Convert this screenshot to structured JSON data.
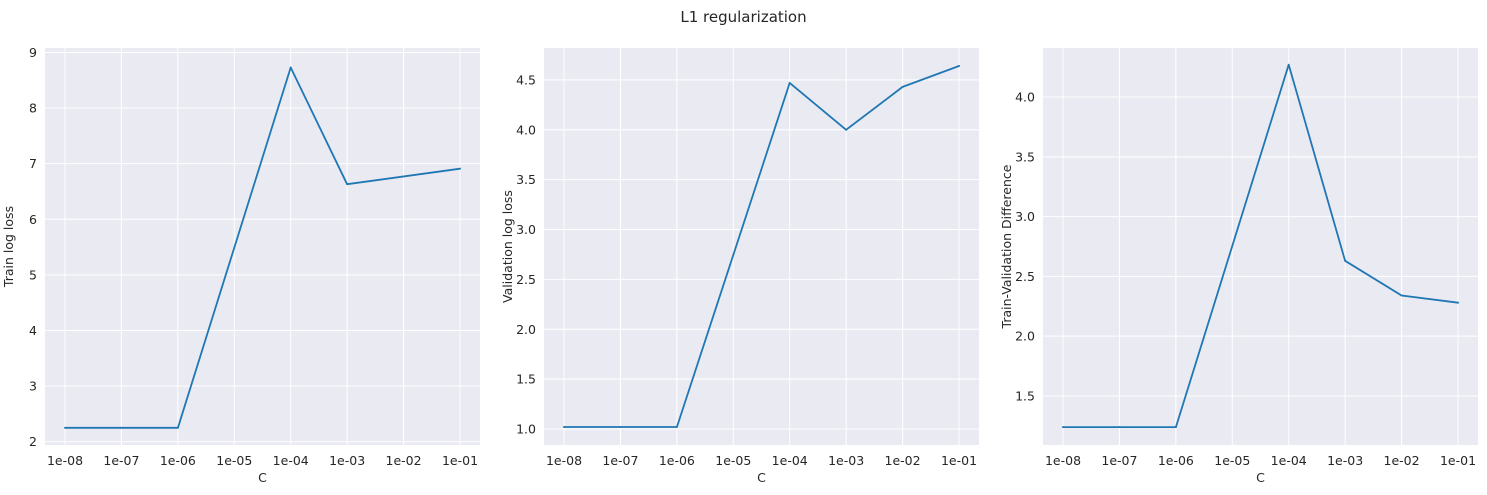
{
  "figure": {
    "suptitle": "L1 regularization"
  },
  "chart_data": [
    {
      "type": "line",
      "title": "",
      "xlabel": "C",
      "ylabel": "Train log loss",
      "x": [
        "1e-08",
        "1e-07",
        "1e-06",
        "1e-05",
        "1e-04",
        "1e-03",
        "1e-02",
        "1e-01"
      ],
      "series": [
        {
          "values": [
            2.25,
            2.25,
            2.25,
            null,
            8.73,
            6.63,
            null,
            6.91
          ]
        }
      ],
      "ylim": [
        1.94,
        9.08
      ],
      "yticks": [
        2,
        3,
        4,
        5,
        6,
        7,
        8,
        9
      ],
      "ytick_labels": [
        "2",
        "3",
        "4",
        "5",
        "6",
        "7",
        "8",
        "9"
      ],
      "grid": true,
      "color": "#1f77b4"
    },
    {
      "type": "line",
      "title": "",
      "xlabel": "C",
      "ylabel": "Validation log loss",
      "x": [
        "1e-08",
        "1e-07",
        "1e-06",
        "1e-05",
        "1e-04",
        "1e-03",
        "1e-02",
        "1e-01"
      ],
      "series": [
        {
          "values": [
            1.02,
            1.02,
            1.02,
            null,
            4.47,
            4.0,
            4.43,
            4.64
          ]
        }
      ],
      "ylim": [
        0.84,
        4.82
      ],
      "yticks": [
        1.0,
        1.5,
        2.0,
        2.5,
        3.0,
        3.5,
        4.0,
        4.5
      ],
      "ytick_labels": [
        "1.0",
        "1.5",
        "2.0",
        "2.5",
        "3.0",
        "3.5",
        "4.0",
        "4.5"
      ],
      "grid": true,
      "color": "#1f77b4"
    },
    {
      "type": "line",
      "title": "",
      "xlabel": "C",
      "ylabel": "Train-Validation Difference",
      "x": [
        "1e-08",
        "1e-07",
        "1e-06",
        "1e-05",
        "1e-04",
        "1e-03",
        "1e-02",
        "1e-01"
      ],
      "series": [
        {
          "values": [
            1.24,
            1.24,
            1.24,
            null,
            4.27,
            2.63,
            2.34,
            2.28
          ]
        }
      ],
      "ylim": [
        1.09,
        4.41
      ],
      "yticks": [
        1.5,
        2.0,
        2.5,
        3.0,
        3.5,
        4.0
      ],
      "ytick_labels": [
        "1.5",
        "2.0",
        "2.5",
        "3.0",
        "3.5",
        "4.0"
      ],
      "grid": true,
      "color": "#1f77b4"
    }
  ]
}
